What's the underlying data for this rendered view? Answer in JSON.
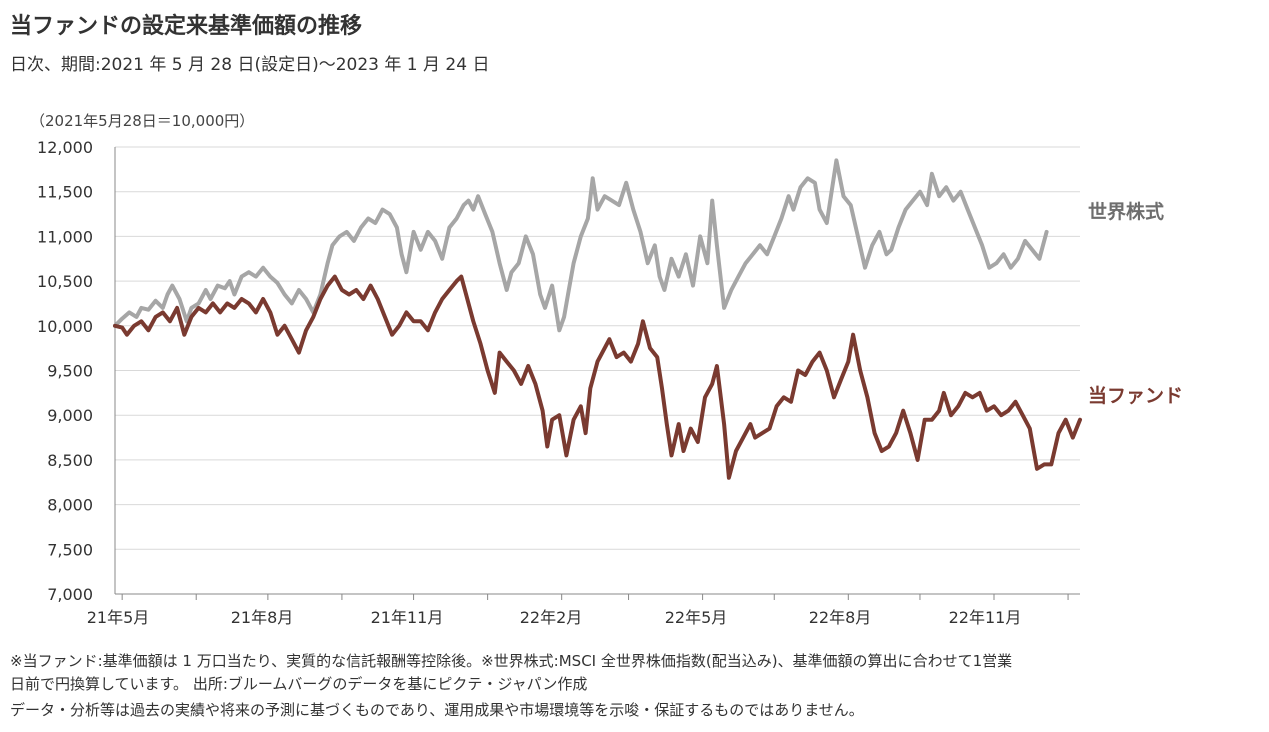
{
  "header": {
    "title": "当ファンドの設定来基準価額の推移",
    "subtitle": "日次、期間:2021 年 5 月 28 日(設定日)～2023 年 1 月 24 日",
    "unit_note": "（2021年5月28日＝10,000円）"
  },
  "footer": {
    "line1": "※当ファンド:基準価額は 1 万口当たり、実質的な信託報酬等控除後。※世界株式:MSCI 全世界株価指数(配当込み)、基準価額の算出に合わせて1営業",
    "line2": "日前で円換算しています。 出所:ブルームバーグのデータを基にピクテ・ジャパン作成",
    "line3": "データ・分析等は過去の実績や将来の予測に基づくものであり、運用成果や市場環境等を示唆・保証するものではありません。"
  },
  "colors": {
    "fund": "#7a3a30",
    "world": "#a6a6a6",
    "grid": "#d9d9d9",
    "axis": "#888888"
  },
  "chart_data": {
    "type": "line",
    "x_start": "2021-05-28",
    "x_end": "2023-01-24",
    "x_tick_labels": [
      "21年5月",
      "21年8月",
      "21年11月",
      "22年2月",
      "22年5月",
      "22年8月",
      "22年11月"
    ],
    "y_tick_labels": [
      "7,000",
      "7,500",
      "8,000",
      "8,500",
      "9,000",
      "9,500",
      "10,000",
      "10,500",
      "11,000",
      "11,500",
      "12,000"
    ],
    "ylim": [
      7000,
      12000
    ],
    "grid": true,
    "series": [
      {
        "name": "世界株式",
        "values": [
          [
            0,
            10000
          ],
          [
            3,
            10080
          ],
          [
            6,
            10150
          ],
          [
            9,
            10100
          ],
          [
            11,
            10200
          ],
          [
            14,
            10180
          ],
          [
            17,
            10280
          ],
          [
            20,
            10200
          ],
          [
            22,
            10350
          ],
          [
            24,
            10450
          ],
          [
            27,
            10300
          ],
          [
            30,
            10050
          ],
          [
            32,
            10200
          ],
          [
            35,
            10250
          ],
          [
            38,
            10400
          ],
          [
            40,
            10300
          ],
          [
            43,
            10450
          ],
          [
            46,
            10420
          ],
          [
            48,
            10500
          ],
          [
            50,
            10350
          ],
          [
            53,
            10550
          ],
          [
            56,
            10600
          ],
          [
            59,
            10550
          ],
          [
            62,
            10650
          ],
          [
            65,
            10550
          ],
          [
            68,
            10480
          ],
          [
            71,
            10350
          ],
          [
            74,
            10250
          ],
          [
            77,
            10400
          ],
          [
            80,
            10300
          ],
          [
            83,
            10150
          ],
          [
            86,
            10350
          ],
          [
            89,
            10700
          ],
          [
            91,
            10900
          ],
          [
            94,
            11000
          ],
          [
            97,
            11050
          ],
          [
            100,
            10950
          ],
          [
            103,
            11100
          ],
          [
            106,
            11200
          ],
          [
            109,
            11150
          ],
          [
            112,
            11300
          ],
          [
            115,
            11250
          ],
          [
            118,
            11100
          ],
          [
            120,
            10800
          ],
          [
            122,
            10600
          ],
          [
            125,
            11050
          ],
          [
            128,
            10850
          ],
          [
            131,
            11050
          ],
          [
            134,
            10950
          ],
          [
            137,
            10750
          ],
          [
            140,
            11100
          ],
          [
            143,
            11200
          ],
          [
            146,
            11350
          ],
          [
            148,
            11400
          ],
          [
            150,
            11300
          ],
          [
            152,
            11450
          ],
          [
            155,
            11250
          ],
          [
            158,
            11050
          ],
          [
            161,
            10700
          ],
          [
            164,
            10400
          ],
          [
            166,
            10600
          ],
          [
            169,
            10700
          ],
          [
            172,
            11000
          ],
          [
            175,
            10800
          ],
          [
            178,
            10350
          ],
          [
            180,
            10200
          ],
          [
            183,
            10450
          ],
          [
            186,
            9950
          ],
          [
            188,
            10100
          ],
          [
            190,
            10400
          ],
          [
            192,
            10700
          ],
          [
            195,
            11000
          ],
          [
            198,
            11200
          ],
          [
            200,
            11650
          ],
          [
            202,
            11300
          ],
          [
            205,
            11450
          ],
          [
            208,
            11400
          ],
          [
            211,
            11350
          ],
          [
            214,
            11600
          ],
          [
            217,
            11300
          ],
          [
            220,
            11050
          ],
          [
            223,
            10700
          ],
          [
            226,
            10900
          ],
          [
            228,
            10550
          ],
          [
            230,
            10400
          ],
          [
            233,
            10750
          ],
          [
            236,
            10550
          ],
          [
            239,
            10800
          ],
          [
            242,
            10450
          ],
          [
            245,
            11000
          ],
          [
            248,
            10700
          ],
          [
            250,
            11400
          ],
          [
            252,
            10900
          ],
          [
            255,
            10200
          ],
          [
            258,
            10400
          ],
          [
            261,
            10550
          ],
          [
            264,
            10700
          ],
          [
            267,
            10800
          ],
          [
            270,
            10900
          ],
          [
            273,
            10800
          ],
          [
            276,
            11000
          ],
          [
            279,
            11200
          ],
          [
            282,
            11450
          ],
          [
            284,
            11300
          ],
          [
            287,
            11550
          ],
          [
            290,
            11650
          ],
          [
            293,
            11600
          ],
          [
            295,
            11300
          ],
          [
            298,
            11150
          ],
          [
            300,
            11500
          ],
          [
            302,
            11850
          ],
          [
            305,
            11450
          ],
          [
            308,
            11350
          ],
          [
            311,
            11000
          ],
          [
            314,
            10650
          ],
          [
            317,
            10900
          ],
          [
            320,
            11050
          ],
          [
            323,
            10800
          ],
          [
            325,
            10850
          ],
          [
            328,
            11100
          ],
          [
            331,
            11300
          ],
          [
            334,
            11400
          ],
          [
            337,
            11500
          ],
          [
            340,
            11350
          ],
          [
            342,
            11700
          ],
          [
            345,
            11450
          ],
          [
            348,
            11550
          ],
          [
            351,
            11400
          ],
          [
            354,
            11500
          ],
          [
            357,
            11300
          ],
          [
            360,
            11100
          ],
          [
            363,
            10900
          ],
          [
            366,
            10650
          ],
          [
            369,
            10700
          ],
          [
            372,
            10800
          ],
          [
            375,
            10650
          ],
          [
            378,
            10750
          ],
          [
            381,
            10950
          ],
          [
            384,
            10850
          ],
          [
            387,
            10750
          ],
          [
            390,
            11050
          ]
        ]
      },
      {
        "name": "当ファンド",
        "values": [
          [
            0,
            10000
          ],
          [
            3,
            9980
          ],
          [
            5,
            9900
          ],
          [
            8,
            10000
          ],
          [
            11,
            10050
          ],
          [
            14,
            9950
          ],
          [
            17,
            10100
          ],
          [
            20,
            10150
          ],
          [
            23,
            10050
          ],
          [
            26,
            10200
          ],
          [
            29,
            9900
          ],
          [
            32,
            10100
          ],
          [
            35,
            10200
          ],
          [
            38,
            10150
          ],
          [
            41,
            10250
          ],
          [
            44,
            10150
          ],
          [
            47,
            10250
          ],
          [
            50,
            10200
          ],
          [
            53,
            10300
          ],
          [
            56,
            10250
          ],
          [
            59,
            10150
          ],
          [
            62,
            10300
          ],
          [
            65,
            10150
          ],
          [
            68,
            9900
          ],
          [
            71,
            10000
          ],
          [
            74,
            9850
          ],
          [
            77,
            9700
          ],
          [
            80,
            9950
          ],
          [
            83,
            10100
          ],
          [
            86,
            10300
          ],
          [
            89,
            10450
          ],
          [
            92,
            10550
          ],
          [
            95,
            10400
          ],
          [
            98,
            10350
          ],
          [
            101,
            10400
          ],
          [
            104,
            10300
          ],
          [
            107,
            10450
          ],
          [
            110,
            10300
          ],
          [
            113,
            10100
          ],
          [
            116,
            9900
          ],
          [
            119,
            10000
          ],
          [
            122,
            10150
          ],
          [
            125,
            10050
          ],
          [
            128,
            10050
          ],
          [
            131,
            9950
          ],
          [
            134,
            10150
          ],
          [
            137,
            10300
          ],
          [
            140,
            10400
          ],
          [
            143,
            10500
          ],
          [
            145,
            10550
          ],
          [
            147,
            10350
          ],
          [
            150,
            10050
          ],
          [
            153,
            9800
          ],
          [
            156,
            9500
          ],
          [
            159,
            9250
          ],
          [
            161,
            9700
          ],
          [
            164,
            9600
          ],
          [
            167,
            9500
          ],
          [
            170,
            9350
          ],
          [
            173,
            9550
          ],
          [
            176,
            9350
          ],
          [
            179,
            9050
          ],
          [
            181,
            8650
          ],
          [
            183,
            8950
          ],
          [
            186,
            9000
          ],
          [
            189,
            8550
          ],
          [
            192,
            8950
          ],
          [
            195,
            9100
          ],
          [
            197,
            8800
          ],
          [
            199,
            9300
          ],
          [
            202,
            9600
          ],
          [
            204,
            9700
          ],
          [
            207,
            9850
          ],
          [
            210,
            9650
          ],
          [
            213,
            9700
          ],
          [
            216,
            9600
          ],
          [
            219,
            9800
          ],
          [
            221,
            10050
          ],
          [
            224,
            9750
          ],
          [
            227,
            9650
          ],
          [
            229,
            9300
          ],
          [
            231,
            8900
          ],
          [
            233,
            8550
          ],
          [
            236,
            8900
          ],
          [
            238,
            8600
          ],
          [
            241,
            8850
          ],
          [
            244,
            8700
          ],
          [
            247,
            9200
          ],
          [
            250,
            9350
          ],
          [
            252,
            9550
          ],
          [
            255,
            8900
          ],
          [
            257,
            8300
          ],
          [
            260,
            8600
          ],
          [
            263,
            8750
          ],
          [
            266,
            8900
          ],
          [
            268,
            8750
          ],
          [
            271,
            8800
          ],
          [
            274,
            8850
          ],
          [
            277,
            9100
          ],
          [
            280,
            9200
          ],
          [
            283,
            9150
          ],
          [
            286,
            9500
          ],
          [
            289,
            9450
          ],
          [
            292,
            9600
          ],
          [
            295,
            9700
          ],
          [
            298,
            9500
          ],
          [
            301,
            9200
          ],
          [
            304,
            9400
          ],
          [
            307,
            9600
          ],
          [
            309,
            9900
          ],
          [
            312,
            9500
          ],
          [
            315,
            9200
          ],
          [
            318,
            8800
          ],
          [
            321,
            8600
          ],
          [
            324,
            8650
          ],
          [
            327,
            8800
          ],
          [
            330,
            9050
          ],
          [
            333,
            8800
          ],
          [
            336,
            8500
          ],
          [
            339,
            8950
          ],
          [
            342,
            8950
          ],
          [
            345,
            9050
          ],
          [
            347,
            9250
          ],
          [
            350,
            9000
          ],
          [
            353,
            9100
          ],
          [
            356,
            9250
          ],
          [
            359,
            9200
          ],
          [
            362,
            9250
          ],
          [
            365,
            9050
          ],
          [
            368,
            9100
          ],
          [
            371,
            9000
          ],
          [
            374,
            9050
          ],
          [
            377,
            9150
          ],
          [
            380,
            9000
          ],
          [
            383,
            8850
          ],
          [
            386,
            8400
          ],
          [
            389,
            8450
          ],
          [
            392,
            8450
          ],
          [
            395,
            8800
          ],
          [
            398,
            8950
          ],
          [
            401,
            8750
          ],
          [
            404,
            8950
          ]
        ]
      }
    ]
  }
}
